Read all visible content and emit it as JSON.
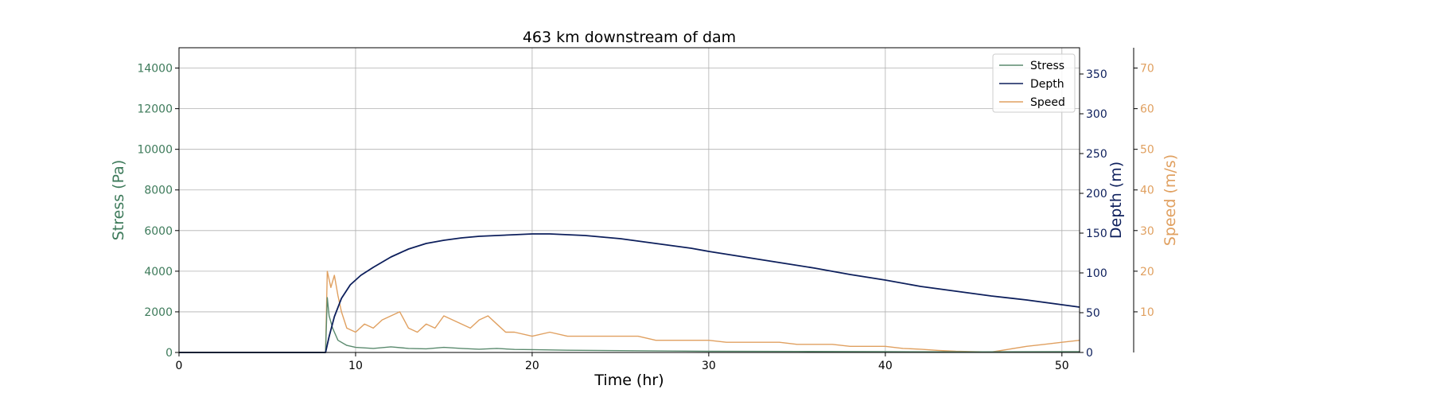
{
  "chart_data": {
    "type": "line",
    "title": "463 km downstream of dam",
    "xlabel": "Time (hr)",
    "xlim": [
      0,
      51
    ],
    "xticks": [
      0,
      10,
      20,
      30,
      40,
      50
    ],
    "grid": true,
    "legend_placement": "top-right",
    "axes": {
      "stress": {
        "label": "Stress (Pa)",
        "ylim": [
          0,
          15000
        ],
        "ticks": [
          0,
          2000,
          4000,
          6000,
          8000,
          10000,
          12000,
          14000
        ],
        "color": "#3d7a5a",
        "side": "left"
      },
      "depth": {
        "label": "Depth (m)",
        "ylim": [
          0,
          383
        ],
        "ticks": [
          0,
          50,
          100,
          150,
          200,
          250,
          300,
          350
        ],
        "color": "#0d1f5c",
        "side": "right"
      },
      "speed": {
        "label": "Speed (m/s)",
        "ylim": [
          0,
          75
        ],
        "ticks": [
          10,
          20,
          30,
          40,
          50,
          60,
          70
        ],
        "color": "#e0a060",
        "side": "right-offset"
      }
    },
    "series": [
      {
        "name": "Stress",
        "axis": "stress",
        "color": "#5a8a6e",
        "x": [
          0,
          8.3,
          8.4,
          8.5,
          8.7,
          9.0,
          9.5,
          10,
          11,
          12,
          13,
          14,
          15,
          16,
          17,
          18,
          19,
          20,
          22,
          25,
          28,
          30,
          35,
          40,
          45,
          50,
          51
        ],
        "y": [
          0,
          0,
          2700,
          1800,
          1200,
          600,
          350,
          250,
          200,
          280,
          200,
          180,
          250,
          200,
          160,
          200,
          150,
          140,
          110,
          90,
          70,
          60,
          50,
          40,
          30,
          40,
          40
        ]
      },
      {
        "name": "Depth",
        "axis": "depth",
        "color": "#0d1f5c",
        "x": [
          0,
          8.3,
          8.5,
          8.8,
          9.2,
          9.7,
          10.3,
          11,
          12,
          13,
          14,
          15,
          16,
          17,
          18,
          19,
          20,
          21,
          22,
          23,
          24,
          25,
          26,
          27,
          28,
          29,
          30,
          32,
          34,
          36,
          38,
          40,
          42,
          44,
          46,
          48,
          50,
          51
        ],
        "y": [
          0,
          0,
          20,
          45,
          68,
          85,
          97,
          107,
          120,
          130,
          137,
          141,
          144,
          146,
          147,
          148,
          149,
          149,
          148,
          147,
          145,
          143,
          140,
          137,
          134,
          131,
          127,
          120,
          113,
          106,
          98,
          91,
          83,
          77,
          71,
          66,
          60,
          57
        ]
      },
      {
        "name": "Speed",
        "axis": "speed",
        "color": "#e0a060",
        "x": [
          0,
          8.3,
          8.4,
          8.6,
          8.8,
          9.0,
          9.2,
          9.5,
          10,
          10.5,
          11,
          11.5,
          12,
          12.5,
          13,
          13.5,
          14,
          14.5,
          15,
          15.5,
          16,
          16.5,
          17,
          17.5,
          18,
          18.5,
          19,
          20,
          21,
          22,
          23,
          24,
          25,
          26,
          27,
          28,
          29,
          30,
          31,
          32,
          33,
          34,
          35,
          36,
          37,
          38,
          39,
          40,
          41,
          42,
          43,
          44,
          45,
          46,
          47,
          48,
          49,
          50,
          51
        ],
        "y": [
          0,
          0,
          20,
          16,
          19,
          14,
          10,
          6,
          5,
          7,
          6,
          8,
          9,
          10,
          6,
          5,
          7,
          6,
          9,
          8,
          7,
          6,
          8,
          9,
          7,
          5,
          5,
          4,
          5,
          4,
          4,
          4,
          4,
          4,
          3,
          3,
          3,
          3,
          2.5,
          2.5,
          2.5,
          2.5,
          2,
          2,
          2,
          1.5,
          1.5,
          1.5,
          1,
          0.8,
          0.5,
          0.3,
          0.2,
          0.1,
          0.8,
          1.5,
          2,
          2.5,
          3
        ]
      }
    ]
  }
}
